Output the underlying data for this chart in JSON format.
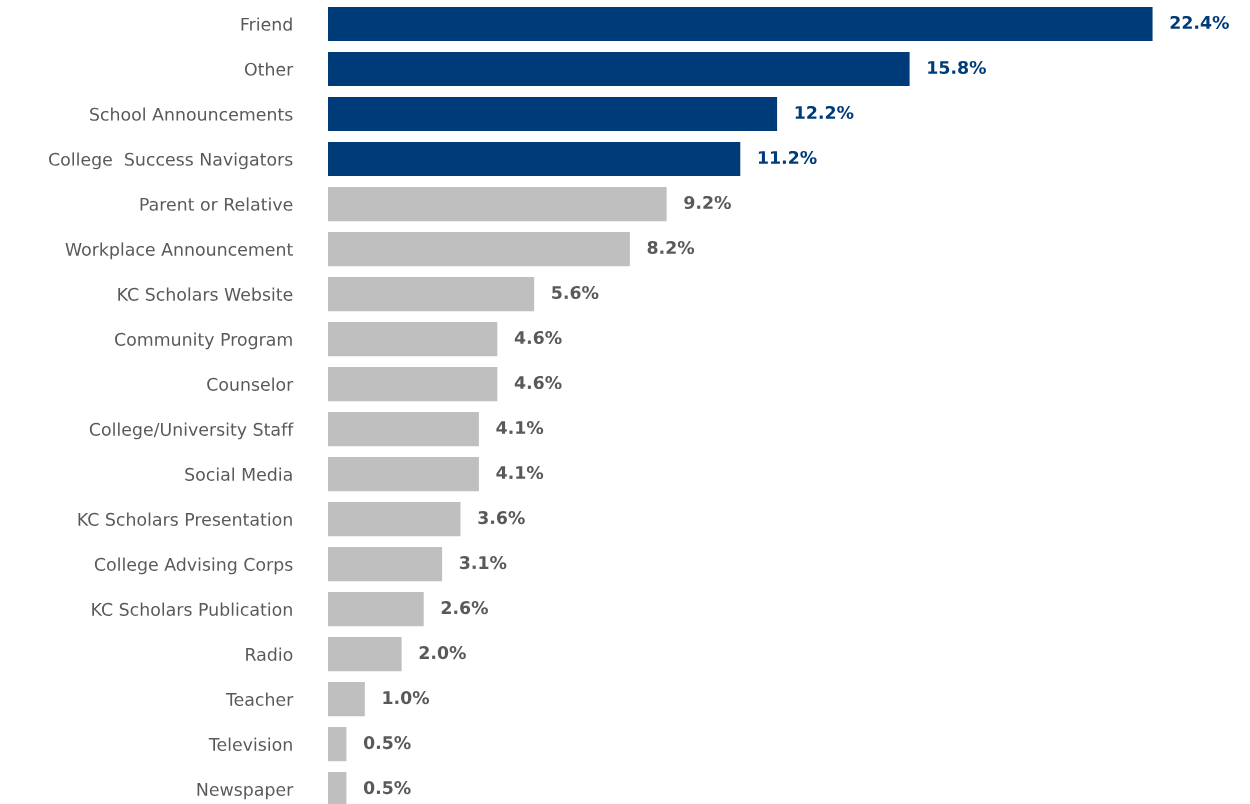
{
  "chart_data": {
    "type": "bar",
    "orientation": "horizontal",
    "categories": [
      "Friend",
      "Other",
      "School Announcements",
      "College  Success Navigators",
      "Parent or Relative",
      "Workplace Announcement",
      "KC Scholars Website",
      "Community Program",
      "Counselor",
      "College/University Staff",
      "Social Media",
      "KC Scholars Presentation",
      "College Advising Corps",
      "KC Scholars Publication",
      "Radio",
      "Teacher",
      "Television",
      "Newspaper"
    ],
    "values": [
      22.4,
      15.8,
      12.2,
      11.2,
      9.2,
      8.2,
      5.6,
      4.6,
      4.6,
      4.1,
      4.1,
      3.6,
      3.1,
      2.6,
      2.0,
      1.0,
      0.5,
      0.5
    ],
    "value_labels": [
      "22.4%",
      "15.8%",
      "12.2%",
      "11.2%",
      "9.2%",
      "8.2%",
      "5.6%",
      "4.6%",
      "4.6%",
      "4.1%",
      "4.1%",
      "3.6%",
      "3.1%",
      "2.6%",
      "2.0%",
      "1.0%",
      "0.5%",
      "0.5%"
    ],
    "colors": [
      "#003b79",
      "#003b79",
      "#003b79",
      "#003b79",
      "#bfbfbf",
      "#bfbfbf",
      "#bfbfbf",
      "#bfbfbf",
      "#bfbfbf",
      "#bfbfbf",
      "#bfbfbf",
      "#bfbfbf",
      "#bfbfbf",
      "#bfbfbf",
      "#bfbfbf",
      "#bfbfbf",
      "#bfbfbf",
      "#bfbfbf"
    ],
    "grid": false,
    "legend": false
  }
}
